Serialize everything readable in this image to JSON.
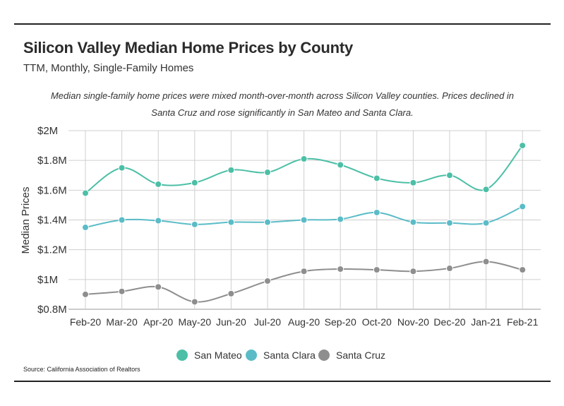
{
  "header": {
    "title": "Silicon Valley Median Home Prices by County",
    "subtitle": "TTM, Monthly, Single-Family Homes",
    "note": "Median single-family home prices were mixed month-over-month across Silicon Valley counties. Prices declined in Santa Cruz and rose significantly in San Mateo and Santa Clara."
  },
  "footer": {
    "source": "Source:  California Association of Realtors"
  },
  "chart_data": {
    "type": "line",
    "title": "Silicon Valley Median Home Prices by County",
    "xlabel": "",
    "ylabel": "Median Prices",
    "ylim": [
      0.8,
      2.0
    ],
    "yticks": [
      {
        "value": 0.8,
        "label": "$0.8M"
      },
      {
        "value": 1.0,
        "label": "$1M"
      },
      {
        "value": 1.2,
        "label": "$1.2M"
      },
      {
        "value": 1.4,
        "label": "$1.4M"
      },
      {
        "value": 1.6,
        "label": "$1.6M"
      },
      {
        "value": 1.8,
        "label": "$1.8M"
      },
      {
        "value": 2.0,
        "label": "$2M"
      }
    ],
    "categories": [
      "Feb-20",
      "Mar-20",
      "Apr-20",
      "May-20",
      "Jun-20",
      "Jul-20",
      "Aug-20",
      "Sep-20",
      "Oct-20",
      "Nov-20",
      "Dec-20",
      "Jan-21",
      "Feb-21"
    ],
    "legend_position": "bottom-center",
    "series": [
      {
        "name": "San Mateo",
        "color": "#4cbfa6",
        "values": [
          1.58,
          1.75,
          1.64,
          1.65,
          1.735,
          1.72,
          1.81,
          1.77,
          1.68,
          1.65,
          1.7,
          1.605,
          1.9
        ]
      },
      {
        "name": "Santa Clara",
        "color": "#5bbcc7",
        "values": [
          1.35,
          1.4,
          1.395,
          1.37,
          1.385,
          1.385,
          1.4,
          1.405,
          1.45,
          1.385,
          1.38,
          1.38,
          1.49
        ]
      },
      {
        "name": "Santa Cruz",
        "color": "#8e8e8e",
        "values": [
          0.9,
          0.92,
          0.95,
          0.85,
          0.905,
          0.99,
          1.055,
          1.07,
          1.065,
          1.055,
          1.075,
          1.12,
          1.065
        ]
      }
    ]
  }
}
